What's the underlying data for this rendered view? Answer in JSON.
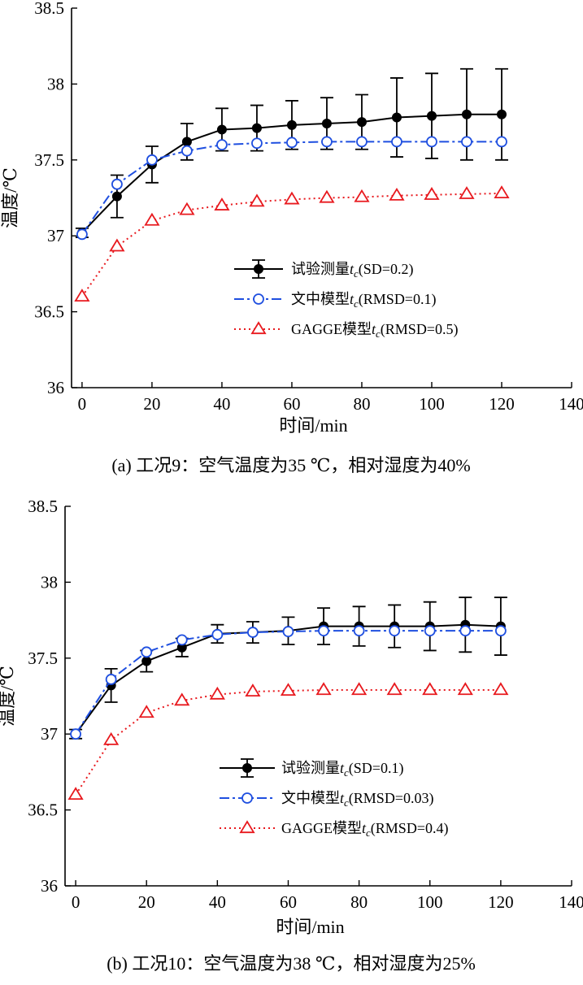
{
  "chart_data": [
    {
      "type": "line",
      "caption": "(a) 工况9：空气温度为35 ℃，相对湿度为40%",
      "xlabel": "时间/min",
      "ylabel": "温度/℃",
      "xlim": [
        -3,
        140
      ],
      "ylim": [
        36,
        38.5
      ],
      "xticks": [
        "0",
        "20",
        "40",
        "60",
        "80",
        "100",
        "120",
        "140"
      ],
      "yticks": [
        "36",
        "36.5",
        "37",
        "37.5",
        "38",
        "38.5"
      ],
      "grid": false,
      "legend_position": "center-right",
      "x": [
        0,
        10,
        20,
        30,
        40,
        50,
        60,
        70,
        80,
        90,
        100,
        110,
        120
      ],
      "series": [
        {
          "name_prefix": "试验测量",
          "name_var": "t",
          "name_sub": "c",
          "name_suffix": "(SD=0.2)",
          "style": "solid-filled-circle",
          "color": "#000000",
          "values": [
            37.02,
            37.26,
            37.47,
            37.62,
            37.7,
            37.71,
            37.73,
            37.74,
            37.75,
            37.78,
            37.79,
            37.8,
            37.8
          ],
          "error": [
            0.03,
            0.14,
            0.12,
            0.12,
            0.14,
            0.15,
            0.16,
            0.17,
            0.18,
            0.26,
            0.28,
            0.3,
            0.3
          ]
        },
        {
          "name_prefix": "文中模型",
          "name_var": "t",
          "name_sub": "c",
          "name_suffix": "(RMSD=0.1)",
          "style": "dashdot-open-circle",
          "color": "#1f4fe0",
          "values": [
            37.01,
            37.34,
            37.5,
            37.56,
            37.6,
            37.61,
            37.615,
            37.62,
            37.62,
            37.62,
            37.62,
            37.62,
            37.62
          ]
        },
        {
          "name_prefix": "GAGGE模型",
          "name_var": "t",
          "name_sub": "c",
          "name_suffix": "(RMSD=0.5)",
          "style": "dotted-open-triangle",
          "color": "#e8191e",
          "values": [
            36.6,
            36.93,
            37.1,
            37.17,
            37.2,
            37.225,
            37.24,
            37.25,
            37.255,
            37.265,
            37.27,
            37.275,
            37.28
          ]
        }
      ]
    },
    {
      "type": "line",
      "caption": "(b) 工况10：空气温度为38 ℃，相对湿度为25%",
      "xlabel": "时间/min",
      "ylabel": "温度/℃",
      "xlim": [
        -3,
        140
      ],
      "ylim": [
        36,
        38.5
      ],
      "xticks": [
        "0",
        "20",
        "40",
        "60",
        "80",
        "100",
        "120",
        "140"
      ],
      "yticks": [
        "36",
        "36.5",
        "37",
        "37.5",
        "38",
        "38.5"
      ],
      "grid": false,
      "legend_position": "center-right",
      "x": [
        0,
        10,
        20,
        30,
        40,
        50,
        60,
        70,
        80,
        90,
        100,
        110,
        120
      ],
      "series": [
        {
          "name_prefix": "试验测量",
          "name_var": "t",
          "name_sub": "c",
          "name_suffix": "(SD=0.1)",
          "style": "solid-filled-circle",
          "color": "#000000",
          "values": [
            37.0,
            37.32,
            37.48,
            37.57,
            37.66,
            37.67,
            37.68,
            37.71,
            37.71,
            37.71,
            37.71,
            37.72,
            37.71
          ],
          "error": [
            0.03,
            0.11,
            0.07,
            0.06,
            0.06,
            0.07,
            0.09,
            0.12,
            0.13,
            0.14,
            0.16,
            0.18,
            0.19
          ]
        },
        {
          "name_prefix": "文中模型",
          "name_var": "t",
          "name_sub": "c",
          "name_suffix": "(RMSD=0.03)",
          "style": "dashdot-open-circle",
          "color": "#1f4fe0",
          "values": [
            37.0,
            37.36,
            37.54,
            37.62,
            37.655,
            37.67,
            37.675,
            37.68,
            37.68,
            37.68,
            37.68,
            37.68,
            37.68
          ]
        },
        {
          "name_prefix": "GAGGE模型",
          "name_var": "t",
          "name_sub": "c",
          "name_suffix": "(RMSD=0.4)",
          "style": "dotted-open-triangle",
          "color": "#e8191e",
          "values": [
            36.6,
            36.96,
            37.14,
            37.22,
            37.26,
            37.28,
            37.285,
            37.29,
            37.29,
            37.29,
            37.29,
            37.29,
            37.29
          ]
        }
      ]
    }
  ]
}
